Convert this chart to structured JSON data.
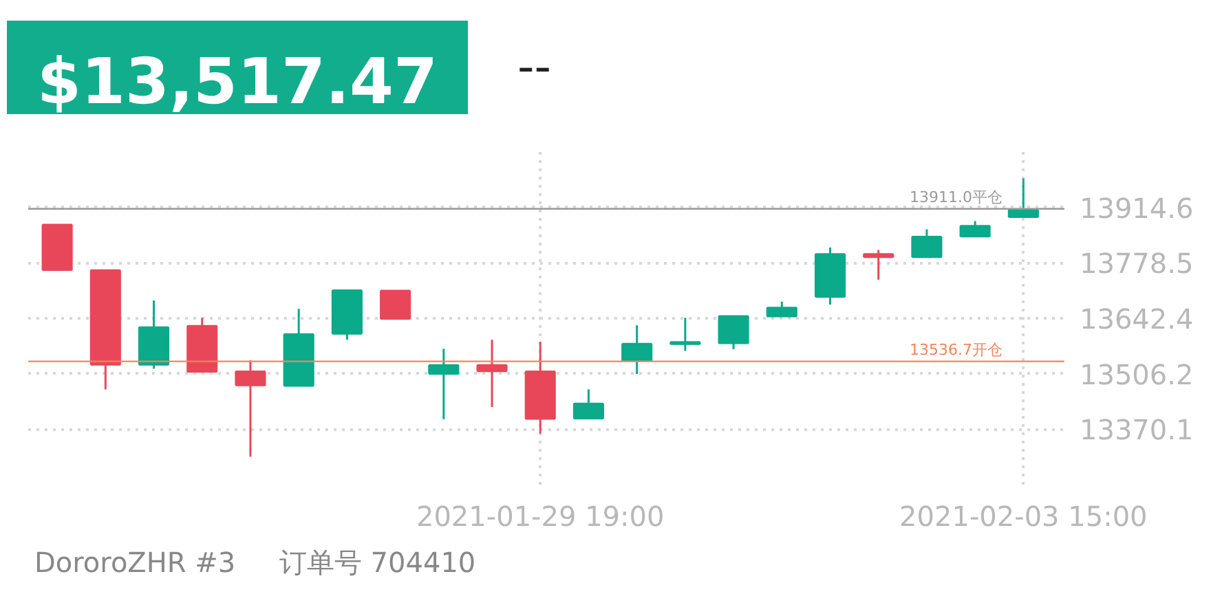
{
  "chart_data": {
    "type": "candlestick",
    "title": "$13,517.47",
    "subtitle": "--",
    "categories": [
      null,
      null,
      null,
      null,
      null,
      null,
      null,
      null,
      null,
      null,
      "2021-01-29 19:00",
      null,
      null,
      null,
      null,
      null,
      null,
      null,
      null,
      null,
      "2021-02-03 15:00"
    ],
    "ohlc": [
      [
        13872.0,
        13872.0,
        13761.4,
        13761.4
      ],
      [
        13760.2,
        13760.2,
        13467.9,
        13528.8
      ],
      [
        13528.8,
        13686.2,
        13518.7,
        13620.2
      ],
      [
        13623.2,
        13643.6,
        13511.7,
        13511.7
      ],
      [
        13511.7,
        13539.1,
        13302.6,
        13478.2
      ],
      [
        13477.0,
        13665.8,
        13477.0,
        13603.1
      ],
      [
        13604.9,
        13710.6,
        13589.7,
        13710.6
      ],
      [
        13709.7,
        13709.7,
        13641.5,
        13641.5
      ],
      [
        13506.6,
        13567.5,
        13394.8,
        13527.0
      ],
      [
        13527.0,
        13589.7,
        13424.4,
        13512.7
      ],
      [
        13511.7,
        13584.8,
        13359.5,
        13396.0
      ],
      [
        13397.0,
        13467.9,
        13397.0,
        13432.6
      ],
      [
        13539.1,
        13625.3,
        13505.7,
        13579.6
      ],
      [
        13579.6,
        13643.6,
        13562.3,
        13583.6
      ],
      [
        13581.6,
        13647.6,
        13566.5,
        13647.6
      ],
      [
        13647.6,
        13683.2,
        13647.6,
        13667.9
      ],
      [
        13695.4,
        13816.2,
        13676.2,
        13799.8
      ],
      [
        13799.8,
        13810.2,
        13737.1,
        13792.8
      ],
      [
        13792.8,
        13860.7,
        13792.8,
        13842.4
      ],
      [
        13843.6,
        13881.1,
        13843.6,
        13868.9
      ],
      [
        13891.2,
        13985.5,
        13891.2,
        13908.5
      ]
    ],
    "colors": [
      "#e8475a",
      "#e8475a",
      "#0aaa8a",
      "#e8475a",
      "#e8475a",
      "#0aaa8a",
      "#0aaa8a",
      "#e8475a",
      "#0aaa8a",
      "#e8475a",
      "#e8475a",
      "#0aaa8a",
      "#0aaa8a",
      "#0aaa8a",
      "#0aaa8a",
      "#0aaa8a",
      "#0aaa8a",
      "#e8475a",
      "#0aaa8a",
      "#0aaa8a",
      "#0aaa8a"
    ],
    "ylim": [
      13234.0,
      14050.7
    ],
    "yticks": [
      13370.1,
      13506.2,
      13642.4,
      13778.5,
      13914.6
    ],
    "grid": true,
    "ref_lines": [
      {
        "axis": "y",
        "value": 13911.0,
        "label": "13911.0平仓",
        "color": "#9a9a9a"
      },
      {
        "axis": "y",
        "value": 13536.7,
        "label": "13536.7开仓",
        "color": "#f5845a"
      }
    ],
    "annotations": [
      "DororoZHR #3     订单号 704410"
    ]
  }
}
